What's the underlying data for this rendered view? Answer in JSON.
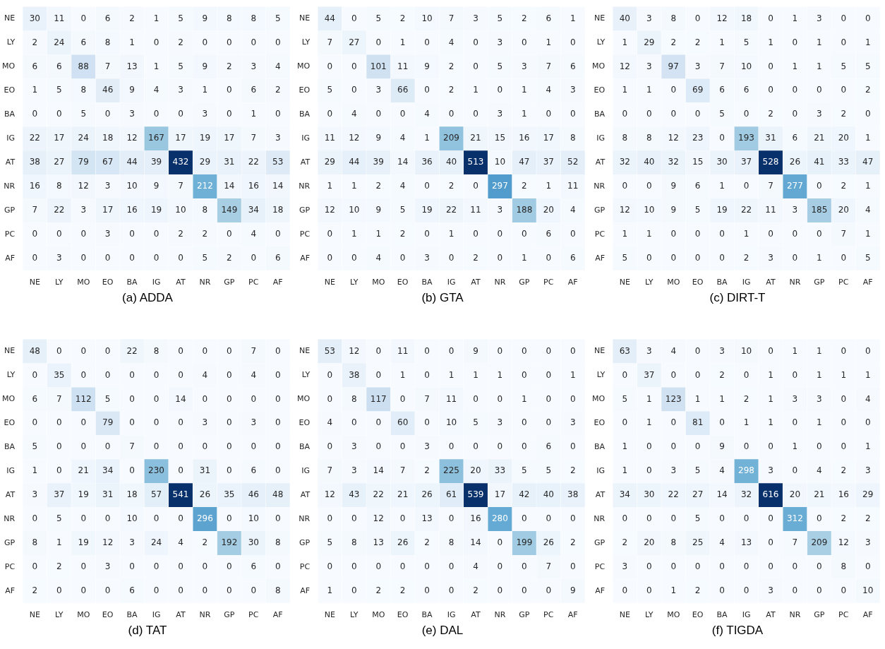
{
  "chart_data": [
    {
      "type": "heatmap",
      "title": "(a) ADDA",
      "data_labels": true,
      "categories": [
        "NE",
        "LY",
        "MO",
        "EO",
        "BA",
        "IG",
        "AT",
        "NR",
        "GP",
        "PC",
        "AF"
      ],
      "y_categories": [
        "NE",
        "LY",
        "MO",
        "EO",
        "BA",
        "IG",
        "AT",
        "NR",
        "GP",
        "PC",
        "AF"
      ],
      "cells": [
        [
          30,
          11,
          0,
          6,
          2,
          1,
          5,
          9,
          8,
          8,
          5
        ],
        [
          2,
          24,
          6,
          8,
          1,
          0,
          2,
          0,
          0,
          0,
          0
        ],
        [
          6,
          6,
          88,
          7,
          13,
          1,
          5,
          9,
          2,
          3,
          4
        ],
        [
          1,
          5,
          8,
          46,
          9,
          4,
          3,
          1,
          0,
          6,
          2
        ],
        [
          0,
          0,
          5,
          0,
          3,
          0,
          0,
          3,
          0,
          1,
          0
        ],
        [
          22,
          17,
          24,
          18,
          12,
          167,
          17,
          19,
          17,
          7,
          3
        ],
        [
          38,
          27,
          79,
          67,
          44,
          39,
          432,
          29,
          31,
          22,
          53
        ],
        [
          16,
          8,
          12,
          3,
          10,
          9,
          7,
          212,
          14,
          16,
          14
        ],
        [
          7,
          22,
          3,
          17,
          16,
          19,
          10,
          8,
          149,
          34,
          18
        ],
        [
          0,
          0,
          0,
          3,
          0,
          0,
          2,
          2,
          0,
          4,
          0
        ],
        [
          0,
          3,
          0,
          0,
          0,
          0,
          0,
          5,
          2,
          0,
          6
        ]
      ]
    },
    {
      "type": "heatmap",
      "title": "(b) GTA",
      "data_labels": true,
      "categories": [
        "NE",
        "LY",
        "MO",
        "EO",
        "BA",
        "IG",
        "AT",
        "NR",
        "GP",
        "PC",
        "AF"
      ],
      "y_categories": [
        "NE",
        "LY",
        "MO",
        "EO",
        "BA",
        "IG",
        "AT",
        "NR",
        "GP",
        "PC",
        "AF"
      ],
      "cells": [
        [
          44,
          0,
          5,
          2,
          10,
          7,
          3,
          5,
          2,
          6,
          1
        ],
        [
          7,
          27,
          0,
          1,
          0,
          4,
          0,
          3,
          0,
          1,
          0
        ],
        [
          0,
          0,
          101,
          11,
          9,
          2,
          0,
          5,
          3,
          7,
          6
        ],
        [
          5,
          0,
          3,
          66,
          0,
          2,
          1,
          0,
          1,
          4,
          3
        ],
        [
          0,
          4,
          0,
          0,
          4,
          0,
          0,
          3,
          1,
          0,
          0
        ],
        [
          11,
          12,
          9,
          4,
          1,
          209,
          21,
          15,
          16,
          17,
          8
        ],
        [
          29,
          44,
          39,
          14,
          36,
          40,
          513,
          10,
          47,
          37,
          52
        ],
        [
          1,
          1,
          2,
          4,
          0,
          2,
          0,
          297,
          2,
          1,
          11
        ],
        [
          12,
          10,
          9,
          5,
          19,
          22,
          11,
          3,
          188,
          20,
          4
        ],
        [
          0,
          1,
          1,
          2,
          0,
          1,
          0,
          0,
          0,
          6,
          0
        ],
        [
          0,
          0,
          4,
          0,
          3,
          0,
          2,
          0,
          1,
          0,
          6
        ]
      ]
    },
    {
      "type": "heatmap",
      "title": "(c) DIRT-T",
      "data_labels": true,
      "categories": [
        "NE",
        "LY",
        "MO",
        "EO",
        "BA",
        "IG",
        "AT",
        "NR",
        "GP",
        "PC",
        "AF"
      ],
      "y_categories": [
        "NE",
        "LY",
        "MO",
        "EO",
        "BA",
        "IG",
        "AT",
        "NR",
        "GP",
        "PC",
        "AF"
      ],
      "cells": [
        [
          40,
          3,
          8,
          0,
          12,
          18,
          0,
          1,
          3,
          0,
          0
        ],
        [
          1,
          29,
          2,
          2,
          1,
          5,
          1,
          0,
          1,
          0,
          1
        ],
        [
          12,
          3,
          97,
          3,
          7,
          10,
          0,
          1,
          1,
          5,
          5
        ],
        [
          1,
          1,
          0,
          69,
          6,
          6,
          0,
          0,
          0,
          0,
          2
        ],
        [
          0,
          0,
          0,
          0,
          5,
          0,
          2,
          0,
          3,
          2,
          0
        ],
        [
          8,
          8,
          12,
          23,
          0,
          193,
          31,
          6,
          21,
          20,
          1
        ],
        [
          32,
          40,
          32,
          15,
          30,
          37,
          528,
          26,
          41,
          33,
          47
        ],
        [
          0,
          0,
          9,
          6,
          1,
          0,
          7,
          277,
          0,
          2,
          1
        ],
        [
          12,
          10,
          9,
          5,
          19,
          22,
          11,
          3,
          185,
          20,
          4
        ],
        [
          1,
          1,
          0,
          0,
          0,
          1,
          0,
          0,
          0,
          7,
          1
        ],
        [
          5,
          0,
          0,
          0,
          0,
          2,
          3,
          0,
          1,
          0,
          5
        ]
      ]
    },
    {
      "type": "heatmap",
      "title": "(d) TAT",
      "data_labels": true,
      "categories": [
        "NE",
        "LY",
        "MO",
        "EO",
        "BA",
        "IG",
        "AT",
        "NR",
        "GP",
        "PC",
        "AF"
      ],
      "y_categories": [
        "NE",
        "LY",
        "MO",
        "EO",
        "BA",
        "IG",
        "AT",
        "NR",
        "GP",
        "PC",
        "AF"
      ],
      "cells": [
        [
          48,
          0,
          0,
          0,
          22,
          8,
          0,
          0,
          0,
          7,
          0
        ],
        [
          0,
          35,
          0,
          0,
          0,
          0,
          0,
          4,
          0,
          4,
          0
        ],
        [
          6,
          7,
          112,
          5,
          0,
          0,
          14,
          0,
          0,
          0,
          0
        ],
        [
          0,
          0,
          0,
          79,
          0,
          0,
          0,
          3,
          0,
          3,
          0
        ],
        [
          5,
          0,
          0,
          0,
          7,
          0,
          0,
          0,
          0,
          0,
          0
        ],
        [
          1,
          0,
          21,
          34,
          0,
          230,
          0,
          31,
          0,
          6,
          0
        ],
        [
          3,
          37,
          19,
          31,
          18,
          57,
          541,
          26,
          35,
          46,
          48
        ],
        [
          0,
          5,
          0,
          0,
          10,
          0,
          0,
          296,
          0,
          10,
          0
        ],
        [
          8,
          1,
          19,
          12,
          3,
          24,
          4,
          2,
          192,
          30,
          8
        ],
        [
          0,
          2,
          0,
          3,
          0,
          0,
          0,
          0,
          0,
          6,
          0
        ],
        [
          2,
          0,
          0,
          0,
          6,
          0,
          0,
          0,
          0,
          0,
          8
        ]
      ]
    },
    {
      "type": "heatmap",
      "title": "(e) DAL",
      "data_labels": true,
      "categories": [
        "NE",
        "LY",
        "MO",
        "EO",
        "BA",
        "IG",
        "AT",
        "NR",
        "GP",
        "PC",
        "AF"
      ],
      "y_categories": [
        "NE",
        "LY",
        "MO",
        "EO",
        "BA",
        "IG",
        "AT",
        "NR",
        "GP",
        "PC",
        "AF"
      ],
      "cells": [
        [
          53,
          12,
          0,
          11,
          0,
          0,
          9,
          0,
          0,
          0,
          0
        ],
        [
          0,
          38,
          0,
          1,
          0,
          1,
          1,
          1,
          0,
          0,
          1
        ],
        [
          0,
          8,
          117,
          0,
          7,
          11,
          0,
          0,
          1,
          0,
          0
        ],
        [
          4,
          0,
          0,
          60,
          0,
          10,
          5,
          3,
          0,
          0,
          3
        ],
        [
          0,
          3,
          0,
          0,
          3,
          0,
          0,
          0,
          0,
          6,
          0
        ],
        [
          7,
          3,
          14,
          7,
          2,
          225,
          20,
          33,
          5,
          5,
          2
        ],
        [
          12,
          43,
          22,
          21,
          26,
          61,
          539,
          17,
          42,
          40,
          38
        ],
        [
          0,
          0,
          12,
          0,
          13,
          0,
          16,
          280,
          0,
          0,
          0
        ],
        [
          5,
          8,
          13,
          26,
          2,
          8,
          14,
          0,
          199,
          26,
          2
        ],
        [
          0,
          0,
          0,
          0,
          0,
          0,
          4,
          0,
          0,
          7,
          0
        ],
        [
          1,
          0,
          2,
          2,
          0,
          0,
          2,
          0,
          0,
          0,
          9
        ]
      ]
    },
    {
      "type": "heatmap",
      "title": "(f) TIGDA",
      "data_labels": true,
      "categories": [
        "NE",
        "LY",
        "MO",
        "EO",
        "BA",
        "IG",
        "AT",
        "NR",
        "GP",
        "PC",
        "AF"
      ],
      "y_categories": [
        "NE",
        "LY",
        "MO",
        "EO",
        "BA",
        "IG",
        "AT",
        "NR",
        "GP",
        "PC",
        "AF"
      ],
      "cells": [
        [
          63,
          3,
          4,
          0,
          3,
          10,
          0,
          1,
          1,
          0,
          0
        ],
        [
          0,
          37,
          0,
          0,
          2,
          0,
          1,
          0,
          1,
          1,
          1
        ],
        [
          5,
          1,
          123,
          1,
          1,
          2,
          1,
          3,
          3,
          0,
          4
        ],
        [
          0,
          1,
          0,
          81,
          0,
          1,
          1,
          0,
          1,
          0,
          0
        ],
        [
          1,
          0,
          0,
          0,
          9,
          0,
          0,
          1,
          0,
          0,
          1
        ],
        [
          1,
          0,
          3,
          5,
          4,
          298,
          3,
          0,
          4,
          2,
          3
        ],
        [
          34,
          30,
          22,
          27,
          14,
          32,
          616,
          20,
          21,
          16,
          29
        ],
        [
          0,
          0,
          0,
          5,
          0,
          0,
          0,
          312,
          0,
          2,
          2
        ],
        [
          2,
          20,
          8,
          25,
          4,
          13,
          0,
          7,
          209,
          12,
          3
        ],
        [
          3,
          0,
          0,
          0,
          0,
          0,
          0,
          0,
          0,
          8,
          0
        ],
        [
          0,
          0,
          1,
          2,
          0,
          0,
          3,
          0,
          0,
          0,
          10
        ]
      ]
    }
  ]
}
